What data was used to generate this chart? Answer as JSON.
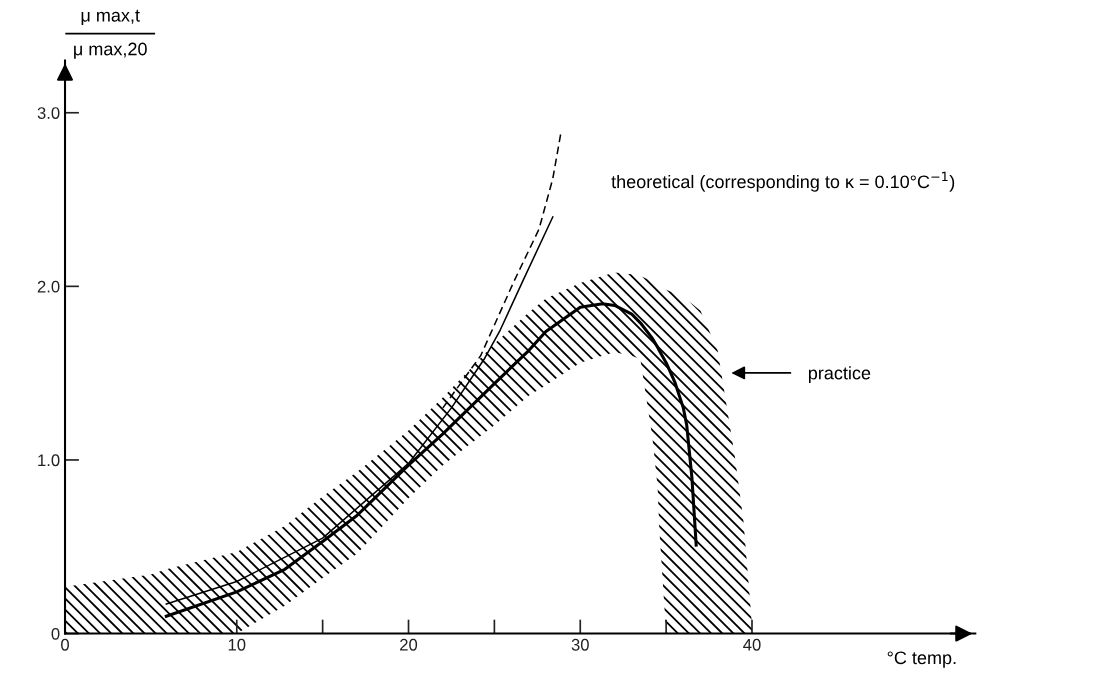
{
  "chart_data": {
    "type": "line",
    "xlabel": "°C temp.",
    "ylabel": "μ max,t\nμ max,20",
    "xlim": [
      0,
      53
    ],
    "ylim": [
      0,
      3.3
    ],
    "xticks": [
      0,
      10,
      20,
      30,
      40,
      {
        "value": 15,
        "label": null
      },
      {
        "value": 25,
        "label": null
      },
      {
        "value": 35,
        "label": null
      }
    ],
    "yticks": [
      0,
      {
        "value": 1,
        "label": "1.0"
      },
      {
        "value": 2,
        "label": "2.0"
      },
      {
        "value": 3,
        "label": "3.0"
      }
    ],
    "grid": false,
    "legend": false,
    "marker": "none",
    "series": [
      {
        "color": "#000000",
        "line_style": "solid",
        "x": [
          0,
          5,
          5.9,
          10,
          12.8,
          15,
          17,
          20,
          22,
          25,
          27,
          28,
          30,
          31.3,
          32,
          33,
          33.5,
          34.2,
          34.5,
          34.6,
          35,
          35.5,
          36,
          36.2,
          36.5,
          36.75,
          37,
          38,
          39,
          39.5,
          40
        ],
        "values": [
          null,
          null,
          0.1,
          0.24,
          0.37,
          0.53,
          0.68,
          0.97,
          1.15,
          1.44,
          1.63,
          1.74,
          1.88,
          1.9,
          1.89,
          1.84,
          1.79,
          1.7,
          1.65,
          1.63,
          1.56,
          1.45,
          1.3,
          1.2,
          0.9,
          0.51,
          null,
          null,
          null,
          null,
          null
        ],
        "lower": [
          0,
          0,
          0,
          0,
          0.16,
          0.32,
          0.46,
          0.78,
          0.97,
          1.2,
          1.37,
          1.43,
          1.56,
          1.6,
          1.62,
          1.6,
          1.58,
          1.13,
          0.85,
          0.61,
          0,
          0,
          0,
          0,
          0,
          0,
          0,
          0,
          0,
          0,
          0
        ],
        "upper": [
          0.27,
          0.34,
          0.37,
          0.47,
          0.62,
          0.79,
          0.93,
          1.17,
          1.36,
          1.67,
          1.85,
          1.93,
          2.02,
          2.06,
          2.08,
          2.07,
          2.06,
          2.03,
          2.01,
          2.0,
          1.98,
          1.96,
          1.94,
          1.92,
          1.9,
          1.88,
          1.86,
          1.63,
          1.02,
          0.65,
          0.05
        ]
      },
      {
        "color": "#000000",
        "line_style": "solid",
        "name": "theoretical (corresponding to κ = 0.10°C$^{−1}$)",
        "x": [
          5.9,
          10,
          15,
          20,
          22.5,
          24.4,
          25.3,
          26.7,
          28.4
        ],
        "values": [
          0.17,
          0.3,
          0.55,
          0.98,
          1.3,
          1.58,
          1.74,
          2.04,
          2.4
        ]
      },
      {
        "color": "#000000",
        "line_style": "dashed",
        "x": [
          22,
          24.2,
          26.1,
          27.6,
          28.4,
          28.9
        ],
        "values": [
          1.3,
          1.6,
          2.02,
          2.33,
          2.62,
          2.9
        ]
      }
    ],
    "annotations": [
      "practice"
    ]
  }
}
